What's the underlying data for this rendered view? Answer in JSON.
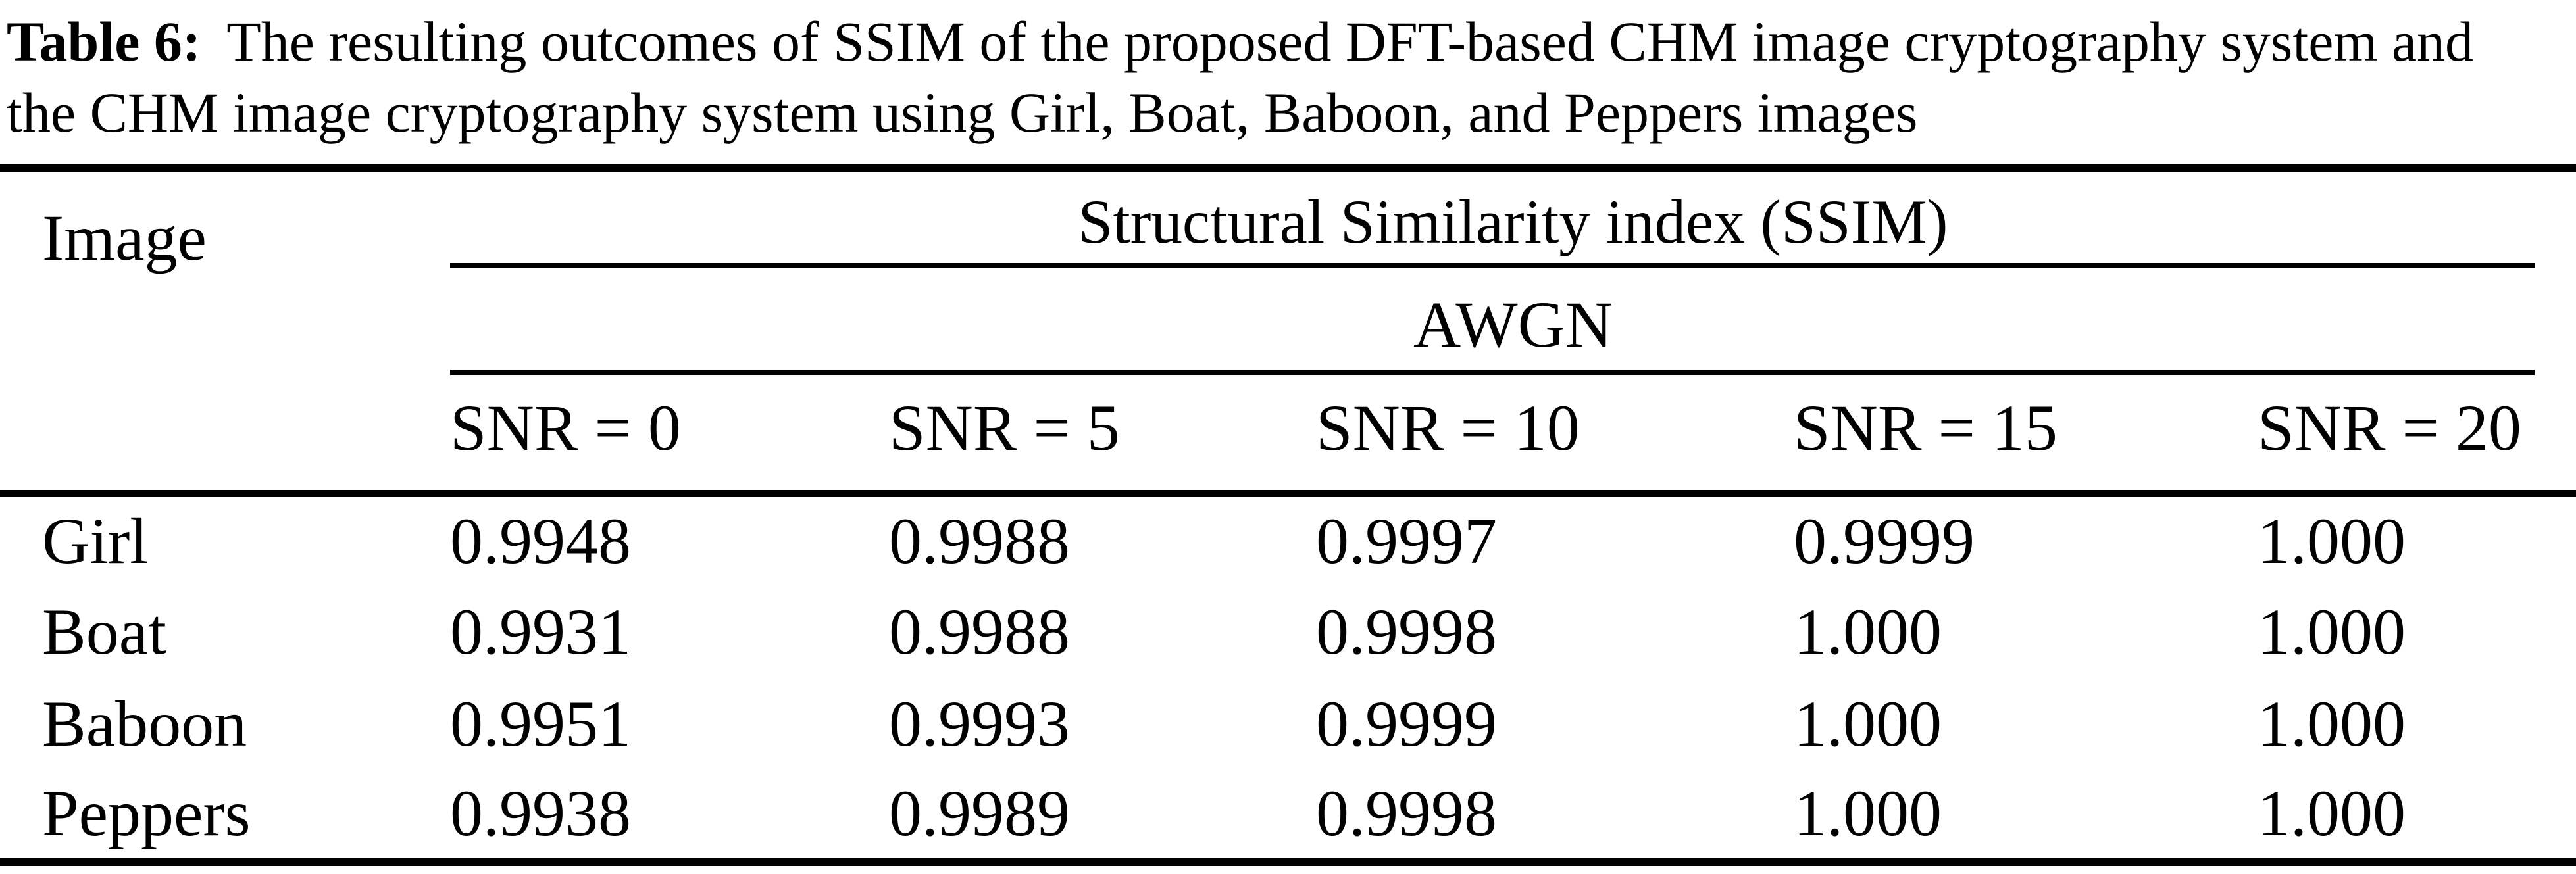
{
  "caption": {
    "label": "Table 6:",
    "line1_rest": "The resulting outcomes of SSIM of the proposed DFT-based CHM image cryptography system and",
    "line2": "the CHM image cryptography system using Girl, Boat, Baboon, and Peppers images"
  },
  "table": {
    "col1_header": "Image",
    "group_header": "Structural Similarity index (SSIM)",
    "subgroup_header": "AWGN",
    "snr_headers": [
      "SNR = 0",
      "SNR = 5",
      "SNR = 10",
      "SNR = 15",
      "SNR = 20"
    ],
    "rows": [
      {
        "image": "Girl",
        "values": [
          "0.9948",
          "0.9988",
          "0.9997",
          "0.9999",
          "1.000"
        ]
      },
      {
        "image": "Boat",
        "values": [
          "0.9931",
          "0.9988",
          "0.9998",
          "1.000",
          "1.000"
        ]
      },
      {
        "image": "Baboon",
        "values": [
          "0.9951",
          "0.9993",
          "0.9999",
          "1.000",
          "1.000"
        ]
      },
      {
        "image": "Peppers",
        "values": [
          "0.9938",
          "0.9989",
          "0.9998",
          "1.000",
          "1.000"
        ]
      }
    ]
  },
  "colors": {
    "text": "#000000",
    "background": "#ffffff",
    "rule": "#000000"
  }
}
